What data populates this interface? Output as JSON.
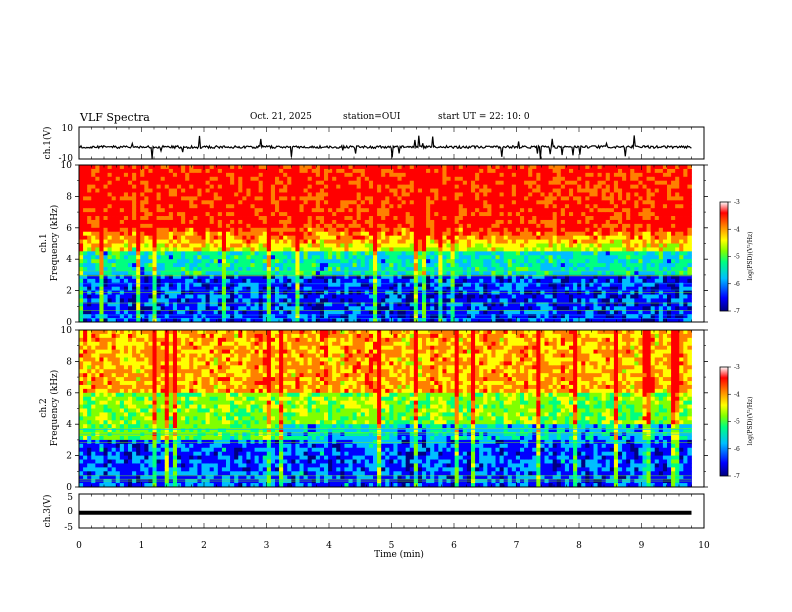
{
  "header": {
    "title": "VLF Spectra",
    "date": "Oct. 21, 2025",
    "station": "station=OUI",
    "start": "start  UT  =   22: 10: 0"
  },
  "chart_data": [
    {
      "id": "ch1-waveform",
      "type": "line",
      "ylabel": "ch.1(V)",
      "ylim": [
        -10,
        10
      ],
      "y_ticks": [
        "10",
        "-10"
      ],
      "baseline": -2.5,
      "description_color": "#000000"
    },
    {
      "id": "ch1-spectrogram",
      "type": "heatmap",
      "ylabel_line1": "ch.1",
      "ylabel_line2": "Frequency (kHz)",
      "ylim": [
        0,
        10
      ],
      "y_ticks": [
        "0",
        "2",
        "4",
        "6",
        "8",
        "10"
      ],
      "colorbar": {
        "range": [
          -7,
          -3
        ],
        "ticks": [
          "-3",
          "-4",
          "-5",
          "-6",
          "-7"
        ],
        "label": "log(PSD)(V²/Hz)"
      }
    },
    {
      "id": "ch2-spectrogram",
      "type": "heatmap",
      "ylabel_line1": "ch.2",
      "ylabel_line2": "Frequency (kHz)",
      "ylim": [
        0,
        10
      ],
      "y_ticks": [
        "0",
        "2",
        "4",
        "6",
        "8",
        "10"
      ],
      "colorbar": {
        "range": [
          -7,
          -3
        ],
        "ticks": [
          "-3",
          "-4",
          "-5",
          "-6",
          "-7"
        ],
        "label": "log(PSD)(V²/Hz)"
      }
    },
    {
      "id": "ch3-waveform",
      "type": "line",
      "ylabel": "ch.3(V)",
      "ylim": [
        -5,
        5
      ],
      "y_ticks": [
        "5",
        "0",
        "-5"
      ],
      "baseline": -0.5
    }
  ],
  "x_axis": {
    "label": "Time (min)",
    "range": [
      0,
      10
    ],
    "data_end": 9.8,
    "ticks": [
      "0",
      "1",
      "2",
      "3",
      "4",
      "5",
      "6",
      "7",
      "8",
      "9",
      "10"
    ]
  },
  "colors": {
    "scale": [
      "#00007f",
      "#0000ff",
      "#00bfff",
      "#00ff80",
      "#80ff00",
      "#ffff00",
      "#ff8000",
      "#ff0000",
      "#ff0000"
    ]
  }
}
